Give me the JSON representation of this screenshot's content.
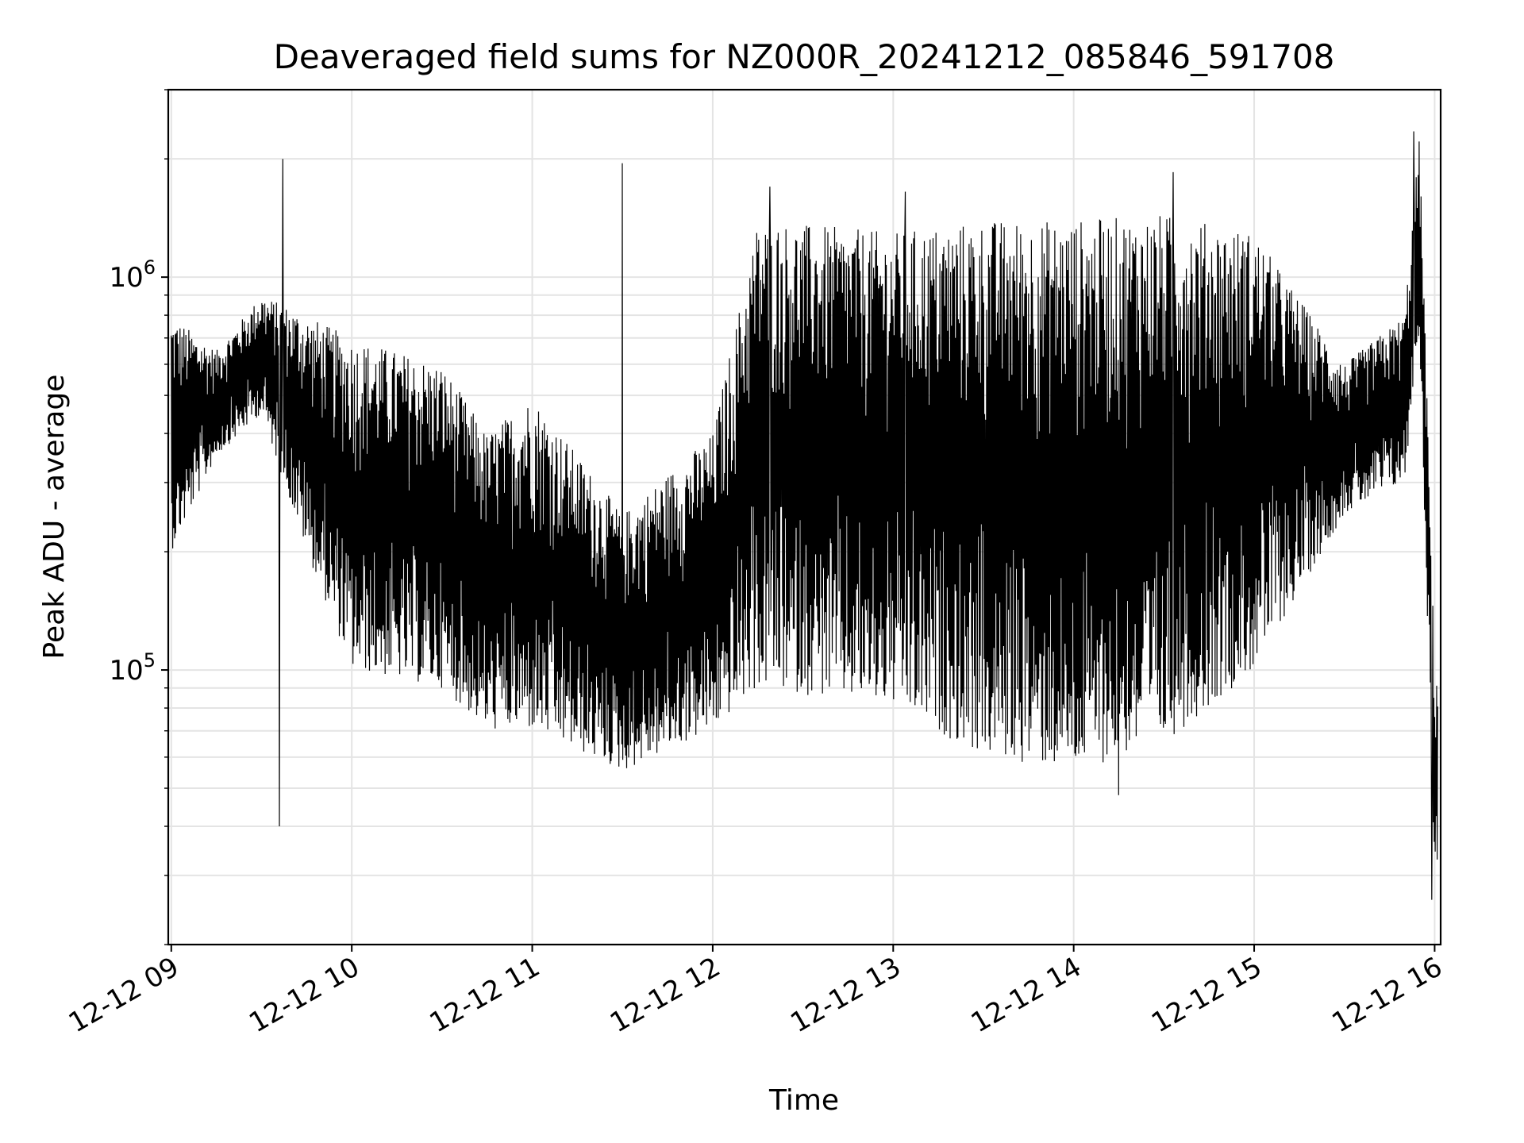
{
  "chart_data": {
    "type": "line",
    "title": "Deaveraged field sums for NZ000R_20241212_085846_591708",
    "xlabel": "Time",
    "ylabel": "Peak ADU - average",
    "xscale": "time",
    "yscale": "log",
    "xlim": [
      "2024-12-12T08:59",
      "2024-12-12T16:02"
    ],
    "ylim": [
      20000,
      3000000
    ],
    "grid": true,
    "legend": "none",
    "x_ticks": [
      {
        "label": "12-12 09",
        "value": "2024-12-12T09:00"
      },
      {
        "label": "12-12 10",
        "value": "2024-12-12T10:00"
      },
      {
        "label": "12-12 11",
        "value": "2024-12-12T11:00"
      },
      {
        "label": "12-12 12",
        "value": "2024-12-12T12:00"
      },
      {
        "label": "12-12 13",
        "value": "2024-12-12T13:00"
      },
      {
        "label": "12-12 14",
        "value": "2024-12-12T14:00"
      },
      {
        "label": "12-12 15",
        "value": "2024-12-12T15:00"
      },
      {
        "label": "12-12 16",
        "value": "2024-12-12T16:00"
      }
    ],
    "y_ticks": [
      {
        "label": "10",
        "exponent": "5",
        "value": 100000
      },
      {
        "label": "10",
        "exponent": "6",
        "value": 1000000
      }
    ],
    "series_color": "#000000",
    "envelope": [
      {
        "t": "2024-12-12T09:00",
        "low": 200000,
        "high": 800000
      },
      {
        "t": "2024-12-12T09:15",
        "low": 350000,
        "high": 650000
      },
      {
        "t": "2024-12-12T09:30",
        "low": 450000,
        "high": 900000
      },
      {
        "t": "2024-12-12T09:45",
        "low": 200000,
        "high": 800000
      },
      {
        "t": "2024-12-12T10:00",
        "low": 100000,
        "high": 700000
      },
      {
        "t": "2024-12-12T10:30",
        "low": 90000,
        "high": 600000
      },
      {
        "t": "2024-12-12T10:45",
        "low": 70000,
        "high": 400000
      },
      {
        "t": "2024-12-12T11:00",
        "low": 70000,
        "high": 500000
      },
      {
        "t": "2024-12-12T11:30",
        "low": 55000,
        "high": 250000
      },
      {
        "t": "2024-12-12T12:00",
        "low": 70000,
        "high": 400000
      },
      {
        "t": "2024-12-12T12:15",
        "low": 90000,
        "high": 1400000
      },
      {
        "t": "2024-12-12T13:00",
        "low": 80000,
        "high": 1300000
      },
      {
        "t": "2024-12-12T13:30",
        "low": 60000,
        "high": 1400000
      },
      {
        "t": "2024-12-12T14:00",
        "low": 55000,
        "high": 1400000
      },
      {
        "t": "2024-12-12T14:30",
        "low": 65000,
        "high": 1450000
      },
      {
        "t": "2024-12-12T15:00",
        "low": 100000,
        "high": 1300000
      },
      {
        "t": "2024-12-12T15:30",
        "low": 250000,
        "high": 600000
      },
      {
        "t": "2024-12-12T15:50",
        "low": 300000,
        "high": 800000
      },
      {
        "t": "2024-12-12T15:55",
        "low": 700000,
        "high": 2300000
      },
      {
        "t": "2024-12-12T16:00",
        "low": 30000,
        "high": 100000
      }
    ],
    "spikes": [
      {
        "t": "2024-12-12T09:37",
        "value": 2000000
      },
      {
        "t": "2024-12-12T09:36",
        "value": 40000
      },
      {
        "t": "2024-12-12T11:30",
        "value": 1950000
      },
      {
        "t": "2024-12-12T12:19",
        "value": 1700000
      },
      {
        "t": "2024-12-12T13:04",
        "value": 1650000
      },
      {
        "t": "2024-12-12T14:15",
        "value": 48000
      },
      {
        "t": "2024-12-12T14:33",
        "value": 1850000
      },
      {
        "t": "2024-12-12T15:53",
        "value": 2350000
      },
      {
        "t": "2024-12-12T15:59",
        "value": 26000
      }
    ]
  }
}
